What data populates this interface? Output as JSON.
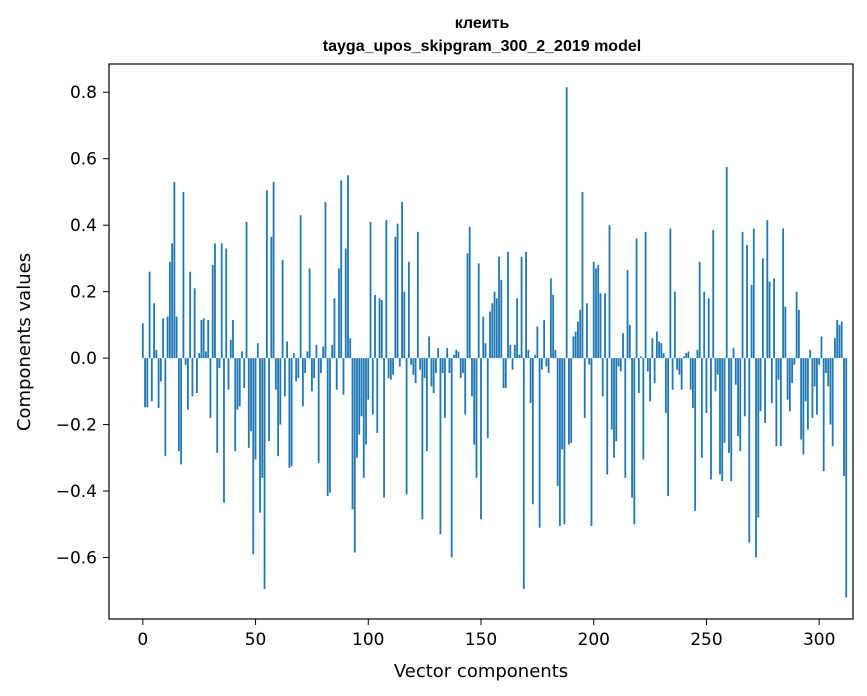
{
  "chart_data": {
    "type": "bar",
    "title": "клеить",
    "subtitle": "tayga_upos_skipgram_300_2_2019 model",
    "xlabel": "Vector components",
    "ylabel": "Components values",
    "xlim": [
      -15,
      315
    ],
    "ylim": [
      -0.785,
      0.885
    ],
    "xticks": [
      0,
      50,
      100,
      150,
      200,
      250,
      300
    ],
    "yticks": [
      -0.6,
      -0.4,
      -0.2,
      0.0,
      0.2,
      0.4,
      0.6,
      0.8
    ],
    "ytick_labels": [
      "−0.6",
      "−0.4",
      "−0.2",
      "0.0",
      "0.2",
      "0.4",
      "0.6",
      "0.8"
    ],
    "xtick_labels": [
      "0",
      "50",
      "100",
      "150",
      "200",
      "250",
      "300"
    ],
    "bar_color": "#1f77b4",
    "values": [
      0.105,
      -0.148,
      -0.148,
      0.26,
      -0.13,
      0.165,
      0.025,
      -0.15,
      -0.07,
      0.12,
      -0.295,
      0.125,
      0.29,
      0.345,
      0.53,
      0.125,
      -0.28,
      -0.32,
      0.5,
      -0.02,
      -0.155,
      0.26,
      -0.115,
      0.21,
      -0.105,
      0.015,
      0.115,
      0.12,
      0.02,
      0.115,
      -0.18,
      0.28,
      0.345,
      -0.285,
      -0.03,
      0.345,
      -0.435,
      0.33,
      -0.095,
      0.055,
      0.115,
      -0.28,
      -0.155,
      -0.145,
      0.02,
      -0.09,
      0.41,
      -0.27,
      -0.22,
      -0.59,
      -0.305,
      0.045,
      -0.465,
      -0.36,
      -0.695,
      0.505,
      -0.25,
      0.365,
      0.53,
      -0.095,
      -0.295,
      -0.2,
      0.295,
      -0.115,
      0.05,
      -0.33,
      -0.325,
      0.015,
      -0.07,
      -0.06,
      0.43,
      -0.145,
      -0.045,
      0.02,
      0.27,
      -0.1,
      -0.06,
      0.04,
      -0.315,
      -0.045,
      0.035,
      0.47,
      -0.415,
      -0.405,
      0.04,
      0.18,
      -0.095,
      0.27,
      0.535,
      -0.11,
      0.33,
      0.55,
      0.06,
      -0.455,
      -0.585,
      -0.3,
      -0.23,
      -0.175,
      -0.36,
      -0.26,
      -0.125,
      0.41,
      -0.17,
      0.19,
      -0.225,
      0.18,
      0.175,
      -0.42,
      0.415,
      -0.06,
      -0.065,
      -0.05,
      0.365,
      0.405,
      -0.025,
      0.47,
      0.2,
      -0.41,
      0.29,
      -0.02,
      -0.05,
      -0.075,
      0.38,
      -0.035,
      -0.485,
      -0.06,
      -0.28,
      0.065,
      -0.085,
      -0.105,
      -0.045,
      0.03,
      -0.53,
      -0.045,
      -0.18,
      0.03,
      -0.045,
      -0.6,
      0.01,
      0.025,
      0.02,
      -0.06,
      -0.045,
      -0.17,
      0.315,
      0.395,
      -0.115,
      -0.26,
      -0.36,
      0.285,
      -0.485,
      0.125,
      0.045,
      -0.24,
      0.14,
      0.165,
      0.2,
      0.18,
      0.305,
      0.235,
      -0.09,
      -0.09,
      0.32,
      0.04,
      -0.035,
      0.04,
      0.18,
      0.01,
      0.305,
      -0.695,
      0.32,
      0.025,
      -0.135,
      -0.44,
      0.01,
      0.095,
      -0.51,
      -0.035,
      0.115,
      -0.025,
      -0.045,
      0.24,
      0.19,
      0.025,
      -0.385,
      -0.505,
      -0.275,
      -0.5,
      0.815,
      -0.26,
      -0.255,
      0.065,
      0.08,
      0.11,
      0.145,
      0.5,
      -0.18,
      0.165,
      -0.02,
      -0.505,
      0.29,
      0.27,
      0.28,
      0.195,
      -0.115,
      0.195,
      -0.35,
      0.4,
      -0.215,
      -0.3,
      -0.25,
      -0.025,
      -0.04,
      0.075,
      -0.36,
      0.265,
      0.1,
      -0.42,
      -0.5,
      0.36,
      -0.105,
      0.005,
      -0.305,
      0.38,
      -0.04,
      -0.13,
      0.06,
      -0.075,
      0.08,
      0.05,
      0.045,
      0.015,
      -0.165,
      -0.415,
      0.39,
      -0.095,
      0.2,
      -0.035,
      -0.05,
      -0.095,
      0.005,
      0.015,
      0.02,
      -0.095,
      -0.15,
      -0.46,
      0.025,
      0.29,
      -0.3,
      0.2,
      -0.165,
      0.18,
      -0.365,
      0.385,
      -0.1,
      -0.05,
      -0.35,
      -0.37,
      -0.255,
      0.575,
      -0.285,
      -0.37,
      0.03,
      -0.08,
      -0.235,
      -0.28,
      0.38,
      -0.175,
      0.34,
      -0.555,
      0.22,
      0.39,
      -0.6,
      -0.48,
      -0.16,
      0.3,
      -0.195,
      0.415,
      0.23,
      -0.135,
      0.24,
      -0.265,
      -0.065,
      -0.265,
      0.39,
      0.155,
      -0.125,
      -0.16,
      -0.075,
      -0.02,
      0.2,
      0.145,
      -0.245,
      -0.29,
      -0.13,
      -0.215,
      0.025,
      -0.18,
      -0.085,
      -0.17,
      -0.02,
      0.065,
      -0.34,
      -0.045,
      -0.085,
      -0.2,
      -0.265,
      0.06,
      0.115,
      0.1,
      0.11,
      -0.355,
      -0.72
    ]
  }
}
